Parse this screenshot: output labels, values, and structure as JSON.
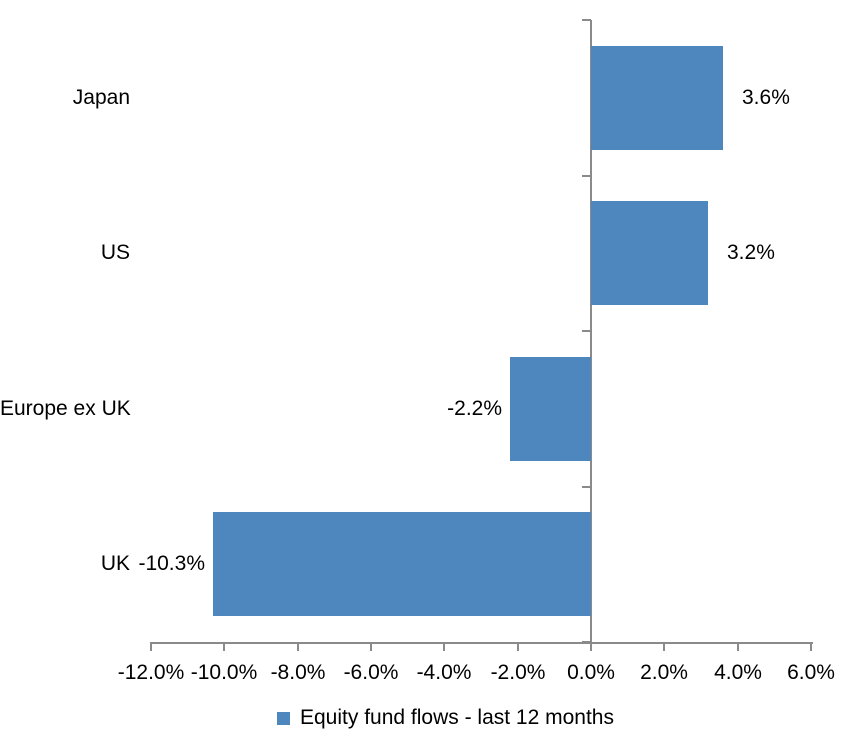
{
  "chart_data": {
    "type": "bar",
    "orientation": "horizontal",
    "title": "",
    "categories": [
      "Japan",
      "US",
      "Europe ex UK",
      "UK"
    ],
    "values": [
      3.6,
      3.2,
      -2.2,
      -10.3
    ],
    "data_labels": [
      "3.6%",
      "3.2%",
      "-2.2%",
      "-10.3%"
    ],
    "series_name": "Equity fund flows - last 12 months",
    "xlabel": "",
    "ylabel": "",
    "xlim": [
      -12,
      6
    ],
    "x_tick_step": 2,
    "x_tick_labels": [
      "-12.0%",
      "-10.0%",
      "-8.0%",
      "-6.0%",
      "-4.0%",
      "-2.0%",
      "0.0%",
      "2.0%",
      "4.0%",
      "6.0%"
    ],
    "grid": false,
    "legend_position": "bottom",
    "legend_entries": [
      "Equity fund flows - last 12 months"
    ],
    "colors": {
      "bar": "#4E87BE",
      "axis": "#8A8A8A",
      "text": "#000000",
      "background": "#FFFFFF"
    }
  }
}
